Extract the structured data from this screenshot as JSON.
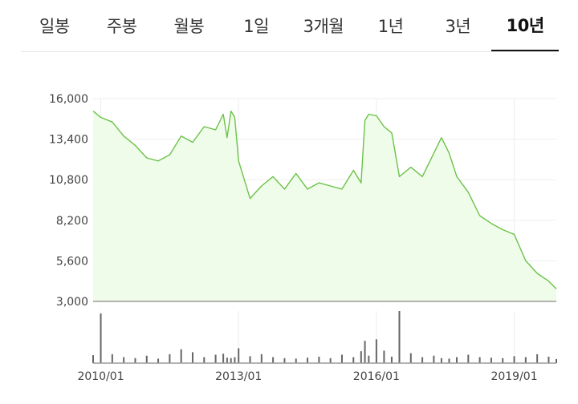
{
  "tabs": [
    {
      "label": "일봉",
      "active": false
    },
    {
      "label": "주봉",
      "active": false
    },
    {
      "label": "월봉",
      "active": false
    },
    {
      "label": "1일",
      "active": false
    },
    {
      "label": "3개월",
      "active": false
    },
    {
      "label": "1년",
      "active": false
    },
    {
      "label": "3년",
      "active": false
    },
    {
      "label": "10년",
      "active": true
    }
  ],
  "colors": {
    "line": "#6cc24a",
    "area": "#effcea",
    "volume": "#666666",
    "grid": "#eeeeee",
    "baseline": "#9a9a9a"
  },
  "chart_data": {
    "type": "area",
    "x_ticks": [
      "2010/01",
      "2013/01",
      "2016/01",
      "2019/01"
    ],
    "y_ticks": [
      "16,000",
      "13,400",
      "10,800",
      "8,200",
      "5,600",
      "3,000"
    ],
    "ylim": [
      3000,
      16000
    ],
    "xlim": [
      "2009-11",
      "2019-12"
    ],
    "grid": true,
    "x": [
      "2009-11",
      "2010-01",
      "2010-04",
      "2010-07",
      "2010-10",
      "2011-01",
      "2011-04",
      "2011-07",
      "2011-10",
      "2012-01",
      "2012-04",
      "2012-07",
      "2012-09",
      "2012-10",
      "2012-11",
      "2012-12",
      "2013-01",
      "2013-04",
      "2013-07",
      "2013-10",
      "2014-01",
      "2014-04",
      "2014-07",
      "2014-10",
      "2015-01",
      "2015-04",
      "2015-07",
      "2015-09",
      "2015-10",
      "2015-11",
      "2016-01",
      "2016-03",
      "2016-05",
      "2016-07",
      "2016-10",
      "2017-01",
      "2017-04",
      "2017-06",
      "2017-08",
      "2017-10",
      "2018-01",
      "2018-04",
      "2018-07",
      "2018-10",
      "2019-01",
      "2019-04",
      "2019-07",
      "2019-10",
      "2019-12"
    ],
    "values": [
      15200,
      14800,
      14500,
      13600,
      13000,
      12200,
      12000,
      12400,
      13600,
      13200,
      14200,
      14000,
      15000,
      13500,
      15200,
      14800,
      12000,
      9600,
      10400,
      11000,
      10200,
      11200,
      10200,
      10600,
      10400,
      10200,
      11400,
      10600,
      14600,
      15000,
      14900,
      14200,
      13800,
      11000,
      11600,
      11000,
      12500,
      13500,
      12500,
      11000,
      10000,
      8500,
      8000,
      7600,
      7300,
      5600,
      4800,
      4300,
      3800
    ],
    "volume_note": "relative bar heights, 0-1",
    "volume": [
      0.16,
      1.0,
      0.18,
      0.12,
      0.1,
      0.15,
      0.09,
      0.18,
      0.28,
      0.22,
      0.12,
      0.17,
      0.19,
      0.11,
      0.1,
      0.12,
      0.3,
      0.14,
      0.18,
      0.12,
      0.1,
      0.09,
      0.11,
      0.13,
      0.1,
      0.17,
      0.12,
      0.24,
      0.45,
      0.15,
      0.48,
      0.25,
      0.13,
      1.05,
      0.2,
      0.12,
      0.15,
      0.1,
      0.09,
      0.12,
      0.17,
      0.12,
      0.11,
      0.1,
      0.14,
      0.12,
      0.18,
      0.13,
      0.08
    ]
  }
}
